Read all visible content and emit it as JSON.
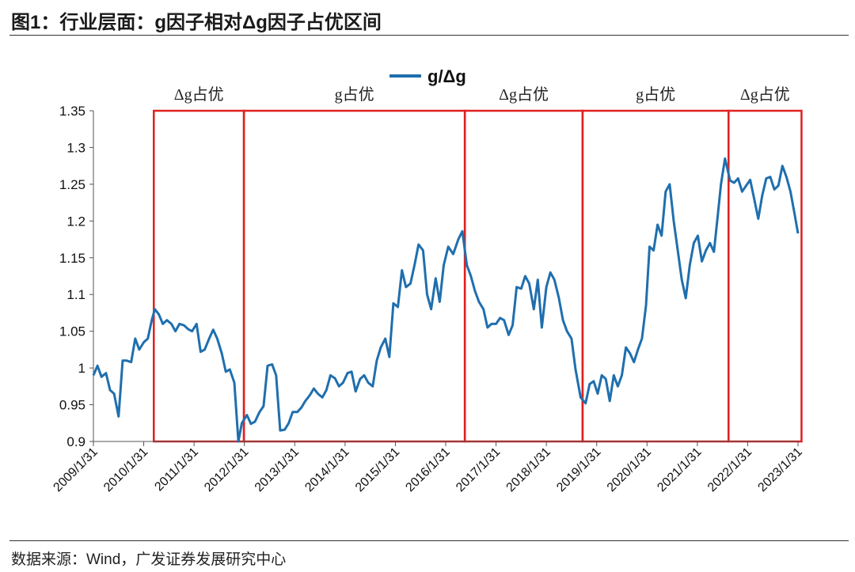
{
  "title": "图1：行业层面：g因子相对Δg因子占优区间",
  "source": "数据来源：Wind，广发证券发展研究中心",
  "chart_data": {
    "type": "line",
    "legend": "g/Δg",
    "line_color": "#1f6fae",
    "region_color": "#e02020",
    "ylim": [
      0.9,
      1.35
    ],
    "y_ticks": [
      0.9,
      0.95,
      1,
      1.05,
      1.1,
      1.15,
      1.2,
      1.25,
      1.3,
      1.35
    ],
    "y_tick_labels": [
      "0.9",
      "0.95",
      "1",
      "1.05",
      "1.1",
      "1.15",
      "1.2",
      "1.25",
      "1.3",
      "1.35"
    ],
    "x_range": [
      2009.0,
      2023.0
    ],
    "x_ticks": [
      2009,
      2010,
      2011,
      2012,
      2013,
      2014,
      2015,
      2016,
      2017,
      2018,
      2019,
      2020,
      2021,
      2022,
      2023
    ],
    "x_tick_labels": [
      "2009/1/31",
      "2010/1/31",
      "2011/1/31",
      "2012/1/31",
      "2013/1/31",
      "2014/1/31",
      "2015/1/31",
      "2016/1/31",
      "2017/1/31",
      "2018/1/31",
      "2019/1/31",
      "2020/1/31",
      "2021/1/31",
      "2022/1/31",
      "2023/1/31"
    ],
    "regions": [
      {
        "label": "Δg占优",
        "start": 2010.2,
        "end": 2011.99
      },
      {
        "label": "g占优",
        "start": 2011.99,
        "end": 2016.38
      },
      {
        "label": "Δg占优",
        "start": 2016.38,
        "end": 2018.72
      },
      {
        "label": "g占优",
        "start": 2018.72,
        "end": 2021.62
      },
      {
        "label": "Δg占优",
        "start": 2021.62,
        "end": 2023.07
      }
    ],
    "series": [
      {
        "name": "g/Δg",
        "points": [
          [
            2009.0,
            0.99
          ],
          [
            2009.08,
            1.003
          ],
          [
            2009.16,
            0.988
          ],
          [
            2009.25,
            0.993
          ],
          [
            2009.33,
            0.97
          ],
          [
            2009.41,
            0.965
          ],
          [
            2009.5,
            0.934
          ],
          [
            2009.58,
            1.01
          ],
          [
            2009.66,
            1.01
          ],
          [
            2009.75,
            1.008
          ],
          [
            2009.83,
            1.04
          ],
          [
            2009.91,
            1.025
          ],
          [
            2010.0,
            1.035
          ],
          [
            2010.08,
            1.04
          ],
          [
            2010.16,
            1.065
          ],
          [
            2010.22,
            1.08
          ],
          [
            2010.3,
            1.073
          ],
          [
            2010.38,
            1.06
          ],
          [
            2010.46,
            1.065
          ],
          [
            2010.55,
            1.06
          ],
          [
            2010.63,
            1.05
          ],
          [
            2010.71,
            1.06
          ],
          [
            2010.8,
            1.058
          ],
          [
            2010.88,
            1.053
          ],
          [
            2010.96,
            1.05
          ],
          [
            2011.05,
            1.06
          ],
          [
            2011.13,
            1.022
          ],
          [
            2011.21,
            1.025
          ],
          [
            2011.3,
            1.04
          ],
          [
            2011.38,
            1.052
          ],
          [
            2011.46,
            1.04
          ],
          [
            2011.55,
            1.02
          ],
          [
            2011.63,
            0.995
          ],
          [
            2011.71,
            0.998
          ],
          [
            2011.8,
            0.98
          ],
          [
            2011.88,
            0.9
          ],
          [
            2011.95,
            0.925
          ],
          [
            2012.05,
            0.936
          ],
          [
            2012.13,
            0.924
          ],
          [
            2012.21,
            0.927
          ],
          [
            2012.3,
            0.94
          ],
          [
            2012.38,
            0.948
          ],
          [
            2012.46,
            1.003
          ],
          [
            2012.55,
            1.005
          ],
          [
            2012.63,
            0.99
          ],
          [
            2012.71,
            0.915
          ],
          [
            2012.8,
            0.916
          ],
          [
            2012.88,
            0.925
          ],
          [
            2012.96,
            0.94
          ],
          [
            2013.05,
            0.94
          ],
          [
            2013.13,
            0.946
          ],
          [
            2013.21,
            0.955
          ],
          [
            2013.3,
            0.963
          ],
          [
            2013.38,
            0.972
          ],
          [
            2013.46,
            0.965
          ],
          [
            2013.55,
            0.96
          ],
          [
            2013.63,
            0.97
          ],
          [
            2013.71,
            0.99
          ],
          [
            2013.8,
            0.986
          ],
          [
            2013.88,
            0.975
          ],
          [
            2013.96,
            0.98
          ],
          [
            2014.05,
            0.993
          ],
          [
            2014.13,
            0.995
          ],
          [
            2014.21,
            0.968
          ],
          [
            2014.3,
            0.985
          ],
          [
            2014.38,
            0.99
          ],
          [
            2014.46,
            0.98
          ],
          [
            2014.55,
            0.975
          ],
          [
            2014.63,
            1.01
          ],
          [
            2014.71,
            1.028
          ],
          [
            2014.8,
            1.04
          ],
          [
            2014.88,
            1.015
          ],
          [
            2014.96,
            1.088
          ],
          [
            2015.05,
            1.083
          ],
          [
            2015.13,
            1.133
          ],
          [
            2015.21,
            1.11
          ],
          [
            2015.3,
            1.115
          ],
          [
            2015.38,
            1.14
          ],
          [
            2015.46,
            1.168
          ],
          [
            2015.55,
            1.16
          ],
          [
            2015.63,
            1.1
          ],
          [
            2015.71,
            1.08
          ],
          [
            2015.8,
            1.122
          ],
          [
            2015.88,
            1.09
          ],
          [
            2015.96,
            1.14
          ],
          [
            2016.05,
            1.165
          ],
          [
            2016.15,
            1.155
          ],
          [
            2016.25,
            1.175
          ],
          [
            2016.33,
            1.186
          ],
          [
            2016.42,
            1.14
          ],
          [
            2016.5,
            1.125
          ],
          [
            2016.58,
            1.105
          ],
          [
            2016.66,
            1.09
          ],
          [
            2016.75,
            1.08
          ],
          [
            2016.83,
            1.055
          ],
          [
            2016.91,
            1.06
          ],
          [
            2017.0,
            1.06
          ],
          [
            2017.08,
            1.068
          ],
          [
            2017.16,
            1.065
          ],
          [
            2017.25,
            1.045
          ],
          [
            2017.33,
            1.058
          ],
          [
            2017.41,
            1.11
          ],
          [
            2017.5,
            1.108
          ],
          [
            2017.58,
            1.125
          ],
          [
            2017.66,
            1.115
          ],
          [
            2017.75,
            1.08
          ],
          [
            2017.83,
            1.12
          ],
          [
            2017.91,
            1.055
          ],
          [
            2018.0,
            1.11
          ],
          [
            2018.08,
            1.13
          ],
          [
            2018.16,
            1.12
          ],
          [
            2018.25,
            1.095
          ],
          [
            2018.33,
            1.065
          ],
          [
            2018.41,
            1.05
          ],
          [
            2018.5,
            1.04
          ],
          [
            2018.58,
            0.998
          ],
          [
            2018.68,
            0.96
          ],
          [
            2018.78,
            0.952
          ],
          [
            2018.86,
            0.978
          ],
          [
            2018.94,
            0.982
          ],
          [
            2019.02,
            0.965
          ],
          [
            2019.1,
            0.99
          ],
          [
            2019.18,
            0.985
          ],
          [
            2019.26,
            0.955
          ],
          [
            2019.34,
            0.99
          ],
          [
            2019.42,
            0.975
          ],
          [
            2019.5,
            0.99
          ],
          [
            2019.58,
            1.028
          ],
          [
            2019.66,
            1.02
          ],
          [
            2019.74,
            1.008
          ],
          [
            2019.82,
            1.025
          ],
          [
            2019.9,
            1.04
          ],
          [
            2019.98,
            1.085
          ],
          [
            2020.05,
            1.165
          ],
          [
            2020.13,
            1.16
          ],
          [
            2020.21,
            1.195
          ],
          [
            2020.29,
            1.18
          ],
          [
            2020.37,
            1.24
          ],
          [
            2020.45,
            1.25
          ],
          [
            2020.53,
            1.2
          ],
          [
            2020.61,
            1.16
          ],
          [
            2020.69,
            1.12
          ],
          [
            2020.77,
            1.095
          ],
          [
            2020.85,
            1.14
          ],
          [
            2020.93,
            1.17
          ],
          [
            2021.01,
            1.18
          ],
          [
            2021.09,
            1.145
          ],
          [
            2021.17,
            1.16
          ],
          [
            2021.25,
            1.17
          ],
          [
            2021.33,
            1.158
          ],
          [
            2021.41,
            1.21
          ],
          [
            2021.47,
            1.25
          ],
          [
            2021.55,
            1.285
          ],
          [
            2021.65,
            1.255
          ],
          [
            2021.73,
            1.252
          ],
          [
            2021.81,
            1.258
          ],
          [
            2021.89,
            1.24
          ],
          [
            2021.97,
            1.248
          ],
          [
            2022.05,
            1.256
          ],
          [
            2022.13,
            1.23
          ],
          [
            2022.21,
            1.203
          ],
          [
            2022.29,
            1.235
          ],
          [
            2022.37,
            1.258
          ],
          [
            2022.45,
            1.26
          ],
          [
            2022.53,
            1.243
          ],
          [
            2022.61,
            1.248
          ],
          [
            2022.69,
            1.275
          ],
          [
            2022.77,
            1.26
          ],
          [
            2022.85,
            1.24
          ],
          [
            2022.93,
            1.21
          ],
          [
            2023.0,
            1.183
          ]
        ]
      }
    ]
  }
}
